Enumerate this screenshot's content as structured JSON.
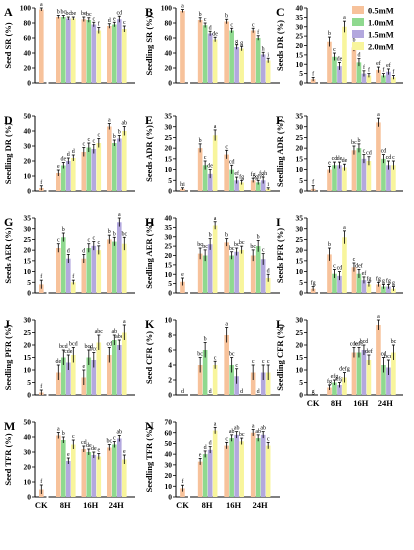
{
  "legend": {
    "title": "",
    "entries": [
      {
        "label": "0.5mM",
        "color": "#F7C29B"
      },
      {
        "label": "1.0mM",
        "color": "#8FD98F"
      },
      {
        "label": "1.5mM",
        "color": "#B3A8DE"
      },
      {
        "label": "2.0mM",
        "color": "#F8F59C"
      }
    ]
  },
  "x_categories": [
    "CK",
    "8H",
    "16H",
    "24H"
  ],
  "panels": [
    {
      "id": "A",
      "ylabel": "Seed SR (%)",
      "ylim": [
        0,
        100
      ],
      "ticks": [
        0,
        20,
        40,
        60,
        80,
        100
      ],
      "ck": {
        "value": 98,
        "err": 2,
        "letter": "a"
      },
      "groups": [
        {
          "values": [
            88,
            88,
            86,
            86
          ],
          "errs": [
            2,
            2,
            2,
            2
          ],
          "letters": [
            "b",
            "bc",
            "bc",
            "be"
          ]
        },
        {
          "values": [
            85,
            84,
            78,
            70
          ],
          "errs": [
            3,
            3,
            3,
            4
          ],
          "letters": [
            "be",
            "bc",
            "c",
            "f"
          ]
        },
        {
          "values": [
            76,
            78,
            85,
            72
          ],
          "errs": [
            3,
            3,
            4,
            4
          ],
          "letters": [
            "d",
            "e",
            "cd",
            "c"
          ]
        }
      ]
    },
    {
      "id": "B",
      "ylabel": "Seedling SR (%)",
      "ylim": [
        0,
        100
      ],
      "ticks": [
        0,
        20,
        40,
        60,
        80,
        100
      ],
      "ck": {
        "value": 96,
        "err": 2,
        "letter": "a"
      },
      "groups": [
        {
          "values": [
            84,
            77,
            66,
            58
          ],
          "errs": [
            3,
            3,
            3,
            3
          ],
          "letters": [
            "b",
            "c",
            "d",
            "de"
          ]
        },
        {
          "values": [
            82,
            70,
            48,
            46
          ],
          "errs": [
            3,
            3,
            3,
            3
          ],
          "letters": [
            "b",
            "c",
            "g",
            "g"
          ]
        },
        {
          "values": [
            70,
            60,
            38,
            30
          ],
          "errs": [
            3,
            3,
            3,
            3
          ],
          "letters": [
            "c",
            "f",
            "h",
            "i"
          ]
        }
      ]
    },
    {
      "id": "C",
      "ylabel": "Seeds DR (%)",
      "ylim": [
        0,
        40
      ],
      "ticks": [
        0,
        5,
        10,
        15,
        20,
        25,
        30,
        35,
        40
      ],
      "ck": {
        "value": 2,
        "err": 1,
        "letter": "f"
      },
      "groups": [
        {
          "values": [
            22,
            14,
            9,
            30
          ],
          "errs": [
            2.5,
            2,
            2,
            3
          ],
          "letters": [
            "b",
            "c",
            "de",
            "a"
          ]
        },
        {
          "values": [
            19,
            11,
            5,
            4
          ],
          "errs": [
            2,
            2,
            1.5,
            1
          ],
          "letters": [
            "b",
            "d",
            "f",
            "f"
          ]
        },
        {
          "values": [
            7,
            4,
            6,
            3
          ],
          "errs": [
            1.5,
            1,
            1.5,
            1
          ],
          "letters": [
            "ef",
            "f",
            "ef",
            "f"
          ]
        }
      ]
    },
    {
      "id": "D",
      "ylabel": "Seedling DR (%)",
      "ylim": [
        0,
        50
      ],
      "ticks": [
        0,
        10,
        20,
        30,
        40,
        50
      ],
      "ck": {
        "value": 2,
        "err": 1.5,
        "letter": "f"
      },
      "groups": [
        {
          "values": [
            12,
            17,
            20,
            22
          ],
          "errs": [
            2,
            2,
            2,
            2
          ],
          "letters": [
            "e",
            "de",
            "d",
            "d"
          ]
        },
        {
          "values": [
            26,
            29,
            28,
            32
          ],
          "errs": [
            3,
            3,
            3,
            3
          ],
          "letters": [
            "c",
            "c",
            "c",
            "c"
          ]
        },
        {
          "values": [
            43,
            32,
            35,
            40
          ],
          "errs": [
            2,
            2,
            2,
            3
          ],
          "letters": [
            "a",
            "b",
            "b",
            "ab"
          ]
        }
      ]
    },
    {
      "id": "E",
      "ylabel": "Seeds ADR (%)",
      "ylim": [
        0,
        35
      ],
      "ticks": [
        0,
        5,
        10,
        15,
        20,
        25,
        30,
        35
      ],
      "ck": {
        "value": 1,
        "err": 0.5,
        "letter": "hi"
      },
      "groups": [
        {
          "values": [
            20,
            12,
            8,
            26
          ],
          "errs": [
            2,
            2,
            2,
            2.5
          ],
          "letters": [
            "b",
            "c",
            "de",
            "a"
          ]
        },
        {
          "values": [
            17,
            10,
            5,
            4
          ],
          "errs": [
            2,
            2,
            1.5,
            1
          ],
          "letters": [
            "c",
            "cd",
            "ef",
            "fg"
          ]
        },
        {
          "values": [
            5,
            4,
            5,
            1
          ],
          "errs": [
            1,
            1,
            1.5,
            0.5
          ],
          "letters": [
            "fg",
            "gh",
            "fgh",
            "i"
          ]
        }
      ]
    },
    {
      "id": "F",
      "ylabel": "Seedling ADR (%)",
      "ylim": [
        0,
        35
      ],
      "ticks": [
        0,
        5,
        10,
        15,
        20,
        25,
        30,
        35
      ],
      "ck": {
        "value": 1,
        "err": 1.5,
        "letter": "f"
      },
      "groups": [
        {
          "values": [
            10,
            12,
            12,
            11
          ],
          "errs": [
            1.5,
            1.5,
            1.5,
            1.5
          ],
          "letters": [
            "e",
            "cd",
            "de",
            "de"
          ]
        },
        {
          "values": [
            19,
            20,
            15,
            14
          ],
          "errs": [
            2,
            2,
            2,
            2
          ],
          "letters": [
            "bc",
            "b",
            "c",
            "cd"
          ]
        },
        {
          "values": [
            32,
            15,
            12,
            12
          ],
          "errs": [
            2,
            2,
            2,
            2
          ],
          "letters": [
            "a",
            "cd",
            "cd",
            "c"
          ]
        }
      ]
    },
    {
      "id": "G",
      "ylabel": "Seeds AER (%)",
      "ylim": [
        0,
        35
      ],
      "ticks": [
        0,
        5,
        10,
        15,
        20,
        25,
        30,
        35
      ],
      "ck": {
        "value": 4,
        "err": 2,
        "letter": "f"
      },
      "groups": [
        {
          "values": [
            21,
            26,
            16,
            5
          ],
          "errs": [
            2,
            2,
            2,
            1
          ],
          "letters": [
            "c",
            "b",
            "d",
            "f"
          ]
        },
        {
          "values": [
            16,
            21,
            22,
            20
          ],
          "errs": [
            2,
            2,
            2,
            2
          ],
          "letters": [
            "d",
            "c",
            "c",
            "c"
          ]
        },
        {
          "values": [
            25,
            24,
            33,
            23
          ],
          "errs": [
            2,
            2,
            2,
            3
          ],
          "letters": [
            "b",
            "b",
            "a",
            "bc"
          ]
        }
      ]
    },
    {
      "id": "H",
      "ylabel": "Seedling AER (%)",
      "ylim": [
        0,
        40
      ],
      "ticks": [
        0,
        5,
        10,
        15,
        20,
        25,
        30,
        35,
        40
      ],
      "ck": {
        "value": 6,
        "err": 2,
        "letter": "e"
      },
      "groups": [
        {
          "values": [
            21,
            20,
            26,
            36
          ],
          "errs": [
            3,
            3,
            3,
            2
          ],
          "letters": [
            "bc",
            "bc",
            "b",
            "a"
          ]
        },
        {
          "values": [
            27,
            20,
            22,
            23
          ],
          "errs": [
            2,
            2,
            2,
            2
          ],
          "letters": [
            "b",
            "bc",
            "bc",
            "bc"
          ]
        },
        {
          "values": [
            20,
            25,
            18,
            8
          ],
          "errs": [
            3,
            3,
            3,
            2
          ],
          "letters": [
            "bc",
            "b",
            "c",
            "d"
          ]
        }
      ]
    },
    {
      "id": "I",
      "ylabel": "Seeds PFR (%)",
      "ylim": [
        0,
        35
      ],
      "ticks": [
        0,
        5,
        10,
        15,
        20,
        25,
        30,
        35
      ],
      "ck": {
        "value": 2,
        "err": 1,
        "letter": "fg"
      },
      "groups": [
        {
          "values": [
            18,
            9,
            8,
            26
          ],
          "errs": [
            3,
            2,
            2,
            3
          ],
          "letters": [
            "b",
            "c",
            "cd",
            "a"
          ]
        },
        {
          "values": [
            12,
            9,
            6,
            4
          ],
          "errs": [
            2,
            2,
            1.5,
            1
          ],
          "letters": [
            "c",
            "def",
            "ef",
            "fg"
          ]
        },
        {
          "values": [
            4,
            3,
            3,
            2
          ],
          "errs": [
            1,
            1,
            1,
            1
          ],
          "letters": [
            "fg",
            "g",
            "fg",
            "g"
          ]
        }
      ]
    },
    {
      "id": "J",
      "ylabel": "Seedling PFR (%)",
      "ylim": [
        0,
        30
      ],
      "ticks": [
        0,
        5,
        10,
        15,
        20,
        25,
        30
      ],
      "ck": {
        "value": 1,
        "err": 1,
        "letter": "f"
      },
      "groups": [
        {
          "values": [
            9,
            15,
            13,
            16
          ],
          "errs": [
            3,
            3,
            3,
            3
          ],
          "letters": [
            "de",
            "bcd",
            "cde",
            "bcd"
          ]
        },
        {
          "values": [
            7,
            15,
            14,
            21
          ],
          "errs": [
            3,
            3,
            3,
            3
          ],
          "letters": [
            "e",
            "bcd",
            "bcd",
            "abc"
          ]
        },
        {
          "values": [
            16,
            22,
            20,
            25
          ],
          "errs": [
            3,
            2,
            2,
            3
          ],
          "letters": [
            "cd",
            "ab",
            "abc",
            "a"
          ]
        }
      ]
    },
    {
      "id": "K",
      "ylabel": "Seed CFR (%)",
      "ylim": [
        0,
        10
      ],
      "ticks": [
        0,
        2,
        4,
        6,
        8,
        10
      ],
      "ck": {
        "value": 0,
        "err": 0,
        "letter": "d"
      },
      "groups": [
        {
          "values": [
            4,
            6,
            0,
            4
          ],
          "errs": [
            1,
            1,
            0,
            0.5
          ],
          "letters": [
            "bc",
            "b",
            "d",
            "c"
          ]
        },
        {
          "values": [
            8,
            4,
            2.5,
            0
          ],
          "errs": [
            1,
            1,
            1,
            0
          ],
          "letters": [
            "a",
            "bc",
            "c",
            "d"
          ]
        },
        {
          "values": [
            3,
            0,
            3,
            3
          ],
          "errs": [
            1,
            0,
            1,
            1
          ],
          "letters": [
            "c",
            "d",
            "c",
            "c"
          ]
        }
      ]
    },
    {
      "id": "L",
      "ylabel": "Seedling CFR (%)",
      "ylim": [
        0,
        30
      ],
      "ticks": [
        0,
        5,
        10,
        15,
        20,
        25,
        30
      ],
      "ck": {
        "value": 0,
        "err": 0,
        "letter": "g"
      },
      "groups": [
        {
          "values": [
            3,
            5,
            4,
            7
          ],
          "errs": [
            1,
            1,
            1,
            2
          ],
          "letters": [
            "fg",
            "efg",
            "efg",
            "defg"
          ]
        },
        {
          "values": [
            17,
            17,
            18,
            14
          ],
          "errs": [
            2,
            2,
            2,
            2
          ],
          "letters": [
            "cde",
            "cde",
            "bcd",
            "def"
          ]
        },
        {
          "values": [
            28,
            12,
            11,
            17
          ],
          "errs": [
            2,
            3,
            3,
            3
          ],
          "letters": [
            "a",
            "cd",
            "bcd",
            "bc"
          ]
        }
      ]
    },
    {
      "id": "M",
      "ylabel": "Seed TFR (%)",
      "ylim": [
        0,
        50
      ],
      "ticks": [
        0,
        10,
        20,
        30,
        40,
        50
      ],
      "ck": {
        "value": 5,
        "err": 3,
        "letter": "f"
      },
      "groups": [
        {
          "values": [
            41,
            38,
            24,
            35
          ],
          "errs": [
            2,
            2,
            2,
            3
          ],
          "letters": [
            "a",
            "b",
            "e",
            "c"
          ]
        },
        {
          "values": [
            32,
            30,
            28,
            27
          ],
          "errs": [
            2,
            2,
            2,
            2
          ],
          "letters": [
            "cd",
            "de",
            "de",
            "e"
          ]
        },
        {
          "values": [
            33,
            35,
            39,
            25
          ],
          "errs": [
            2,
            2,
            2,
            3
          ],
          "letters": [
            "bc",
            "c",
            "ab",
            "e"
          ]
        }
      ]
    },
    {
      "id": "N",
      "ylabel": "Seedling TFR (%)",
      "ylim": [
        0,
        70
      ],
      "ticks": [
        0,
        10,
        20,
        30,
        40,
        50,
        60,
        70
      ],
      "ck": {
        "value": 8,
        "err": 3,
        "letter": "f"
      },
      "groups": [
        {
          "values": [
            33,
            40,
            44,
            62
          ],
          "errs": [
            3,
            3,
            3,
            3
          ],
          "letters": [
            "e",
            "d",
            "d",
            "a"
          ]
        },
        {
          "values": [
            48,
            55,
            58,
            52
          ],
          "errs": [
            3,
            3,
            3,
            3
          ],
          "letters": [
            "c",
            "ab",
            "ab",
            "bc"
          ]
        },
        {
          "values": [
            60,
            55,
            58,
            48
          ],
          "errs": [
            3,
            3,
            3,
            3
          ],
          "letters": [
            "a",
            "ab",
            "ab",
            "c"
          ]
        }
      ]
    }
  ]
}
